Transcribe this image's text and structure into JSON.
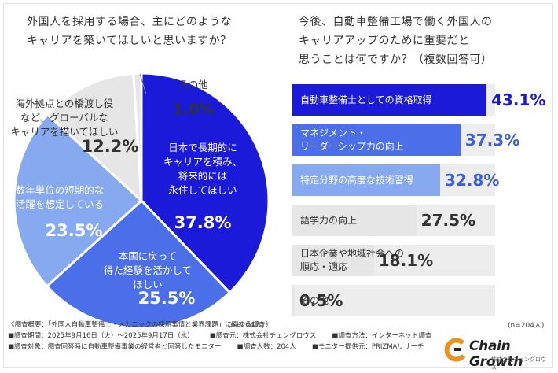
{
  "left": {
    "question": "外国人を採用する場合、主にどのような\nキャリアを築いてほしいと思いますか？",
    "n": "(n=204人)"
  },
  "right": {
    "question": "今後、自動車整備工場で働く外国人の\nキャリアアップのために重要だと\n思うことは何ですか？（複数回答可）",
    "n": "(n=204人)"
  },
  "chart_data": [
    {
      "type": "pie",
      "title": "外国人を採用する場合、主にどのようなキャリアを築いてほしいと思いますか？",
      "slices": [
        {
          "label": "日本で長期的に\nキャリアを積み、\n将来的には\n永住してほしい",
          "value": 37.8,
          "value_label": "37.8%",
          "color": "#1a1ad8"
        },
        {
          "label": "本国に戻って\n得た経験を活かして\nほしい",
          "value": 25.5,
          "value_label": "25.5%",
          "color": "#4a6fe8"
        },
        {
          "label": "数年単位の短期的な\n活躍を想定している",
          "value": 23.5,
          "value_label": "23.5%",
          "color": "#86a9f0"
        },
        {
          "label": "海外拠点との橋渡し役\nなど、グローバルな\nキャリアを描いてほしい",
          "value": 12.2,
          "value_label": "12.2%",
          "color": "#e6e6e6"
        },
        {
          "label": "その他",
          "value": 1.0,
          "value_label": "1.0%",
          "color": "#e6e6e6"
        }
      ]
    },
    {
      "type": "bar",
      "orientation": "horizontal",
      "title": "今後、自動車整備工場で働く外国人のキャリアアップのために重要だと思うことは何ですか？（複数回答可）",
      "categories": [
        "自動車整備士としての資格取得",
        "マネジメント・\nリーダーシップ力の向上",
        "特定分野の高度な技術習得",
        "語学力の向上",
        "日本企業や地域社会への\n順応・適応",
        "その他"
      ],
      "values": [
        43.1,
        37.3,
        32.8,
        27.5,
        18.1,
        0.5
      ],
      "value_labels": [
        "43.1%",
        "37.3%",
        "32.8%",
        "27.5%",
        "18.1%",
        "0.5%"
      ],
      "colors": [
        "#1a1ad8",
        "#4a6fe8",
        "#86a9f0",
        "#e6e6e6",
        "#e6e6e6",
        "#e6e6e6"
      ],
      "xlim": [
        0,
        45
      ]
    }
  ],
  "footer": {
    "line1": "《調査概要：「外国人自動車整備士・メカニックの採用事情と業界課題」に関する調査》",
    "line2a": "■調査期間：2025年9月16日（火）〜2025年9月17日（水）",
    "line2b": "■調査元：株式会社チェングロウス",
    "line2c": "■調査方法：インターネット調査",
    "line3a": "■調査対象：調査回答時に自動車整備事業の経営者と回答したモニター",
    "line3b": "■調査人数：204人",
    "line3c": "■モニター提供元：PRIZMAリサーチ"
  },
  "logo": {
    "name": "Chain Growth",
    "sub": "株式会社チェングロウス"
  }
}
